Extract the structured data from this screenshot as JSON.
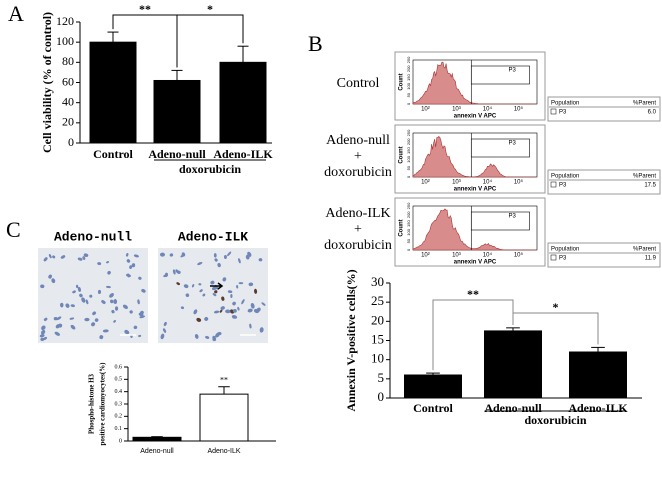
{
  "panels": [
    "A",
    "B",
    "C"
  ],
  "chart_data": [
    {
      "type": "bar",
      "y_label": [
        "Cell viability (% of control)"
      ],
      "categories": [
        "Control",
        "Adeno-null",
        "Adeno-ILK"
      ],
      "values": [
        100,
        62,
        80
      ],
      "errors": [
        10,
        10,
        16
      ],
      "color": "#000000",
      "ylim": [
        0,
        120
      ],
      "yticks": [
        0,
        20,
        40,
        60,
        80,
        100,
        120
      ],
      "group_label": "doxorubicin",
      "annotations": [
        "**",
        "*"
      ]
    },
    {
      "type": "bar",
      "y_label": [
        "Annexin V-positive cells(%)"
      ],
      "categories": [
        "Control",
        "Adeno-null",
        "Adeno-ILK"
      ],
      "values": [
        6,
        17.5,
        12
      ],
      "errors": [
        0.5,
        0.8,
        1.2
      ],
      "color": "#000000",
      "ylim": [
        0,
        30
      ],
      "yticks": [
        0,
        5,
        10,
        15,
        20,
        25,
        30
      ],
      "group_label": "doxorubicin",
      "annotations": [
        "**",
        "*"
      ]
    },
    {
      "type": "bar",
      "y_label": [
        "Phospho-histone H3",
        "positive cardiomyocytes(%)"
      ],
      "categories": [
        "Adeno-null",
        "Adeno-ILK"
      ],
      "values": [
        0.03,
        0.38
      ],
      "errors": [
        0.005,
        0.06
      ],
      "colors": [
        "#000000",
        "#ffffff"
      ],
      "ylim": [
        0,
        0.6
      ],
      "yticks": [
        0,
        0.1,
        0.2,
        0.3,
        0.4,
        0.5,
        0.6
      ],
      "annotations": [
        "**"
      ]
    }
  ],
  "flow_axes": {
    "y_label": "Count",
    "x_label": "annexin V APC",
    "x_tick_labels": [
      "10²",
      "10³",
      "10⁴",
      "10⁵"
    ],
    "y_tick_labels": [
      "0",
      "50",
      "100",
      "150",
      "200",
      "250"
    ],
    "gate": "P3",
    "population_header": "Population",
    "parent_header": "%Parent"
  },
  "flow_panels": [
    {
      "condition": [
        "Control"
      ],
      "parent": "6.0"
    },
    {
      "condition": [
        "Adeno-null",
        "+",
        "doxorubicin"
      ],
      "parent": "17.5"
    },
    {
      "condition": [
        "Adeno-ILK",
        "+",
        "doxorubicin"
      ],
      "parent": "11.9"
    }
  ],
  "micrographs": [
    {
      "title": "Adeno-null"
    },
    {
      "title": "Adeno-ILK"
    }
  ]
}
